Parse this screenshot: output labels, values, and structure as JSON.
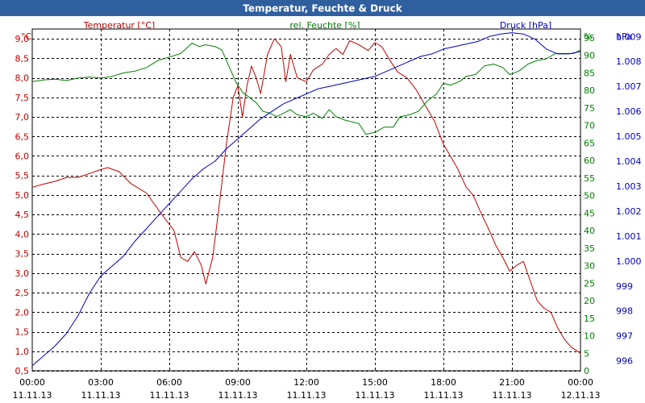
{
  "title": "Temperatur, Feuchte & Druck",
  "colors": {
    "title_bar": "#2f5f9e",
    "title_text": "#ffffff",
    "temp": "#c00000",
    "humid": "#008000",
    "press": "#0000c0",
    "grid": "#000000",
    "axis_text": "#000000"
  },
  "chart_data": {
    "type": "line",
    "title": "Temperatur, Feuchte & Druck",
    "x_ticks": [
      {
        "time": "00:00",
        "date": "11.11.13"
      },
      {
        "time": "03:00",
        "date": "11.11.13"
      },
      {
        "time": "06:00",
        "date": "11.11.13"
      },
      {
        "time": "09:00",
        "date": "11.11.13"
      },
      {
        "time": "12:00",
        "date": "11.11.13"
      },
      {
        "time": "15:00",
        "date": "11.11.13"
      },
      {
        "time": "18:00",
        "date": "11.11.13"
      },
      {
        "time": "21:00",
        "date": "11.11.13"
      },
      {
        "time": "00:00",
        "date": "12.11.13"
      }
    ],
    "xlim": [
      0,
      24
    ],
    "axes": {
      "temp": {
        "unit": "°C",
        "legend": "Temperatur [°C]",
        "ylim": [
          0.5,
          9.25
        ],
        "ticks": [
          "0,5",
          "1,0",
          "1,5",
          "2,0",
          "2,5",
          "3,0",
          "3,5",
          "4,0",
          "4,5",
          "5,0",
          "5,5",
          "6,0",
          "6,5",
          "7,0",
          "7,5",
          "8,0",
          "8,5",
          "9,0"
        ]
      },
      "humid": {
        "unit": "%",
        "legend": "rel. Feuchte [%]",
        "ylim": [
          0,
          97.5
        ],
        "ticks": [
          "0",
          "5",
          "10",
          "15",
          "20",
          "25",
          "30",
          "35",
          "40",
          "45",
          "50",
          "55",
          "60",
          "65",
          "70",
          "75",
          "80",
          "85",
          "90",
          "95"
        ]
      },
      "press": {
        "unit": "hPa",
        "legend": "Druck [hPa]",
        "ylim": [
          995.6,
          1009.3
        ],
        "ticks": [
          "996",
          "997",
          "998",
          "999",
          "1.000",
          "1.001",
          "1.002",
          "1.003",
          "1.004",
          "1.005",
          "1.006",
          "1.007",
          "1.008",
          "1.009"
        ]
      }
    },
    "series": [
      {
        "name": "Temperatur [°C]",
        "axis": "temp",
        "points": [
          [
            0,
            5.2
          ],
          [
            0.5,
            5.28
          ],
          [
            1,
            5.35
          ],
          [
            1.5,
            5.45
          ],
          [
            2,
            5.45
          ],
          [
            2.5,
            5.55
          ],
          [
            3,
            5.65
          ],
          [
            3.3,
            5.7
          ],
          [
            3.8,
            5.6
          ],
          [
            4.3,
            5.3
          ],
          [
            5,
            5.05
          ],
          [
            5.3,
            4.8
          ],
          [
            5.8,
            4.4
          ],
          [
            6.2,
            4.1
          ],
          [
            6.5,
            3.4
          ],
          [
            6.8,
            3.3
          ],
          [
            7.1,
            3.55
          ],
          [
            7.4,
            3.2
          ],
          [
            7.6,
            2.72
          ],
          [
            7.9,
            3.4
          ],
          [
            8.2,
            4.8
          ],
          [
            8.5,
            6.3
          ],
          [
            8.8,
            7.5
          ],
          [
            9,
            7.8
          ],
          [
            9.2,
            7.0
          ],
          [
            9.4,
            7.8
          ],
          [
            9.6,
            8.3
          ],
          [
            9.8,
            8.0
          ],
          [
            10,
            7.6
          ],
          [
            10.3,
            8.6
          ],
          [
            10.6,
            9.0
          ],
          [
            10.9,
            8.8
          ],
          [
            11.1,
            7.9
          ],
          [
            11.3,
            8.6
          ],
          [
            11.6,
            8.0
          ],
          [
            12,
            7.9
          ],
          [
            12.3,
            8.2
          ],
          [
            12.7,
            8.35
          ],
          [
            13,
            8.6
          ],
          [
            13.3,
            8.75
          ],
          [
            13.6,
            8.6
          ],
          [
            13.9,
            8.95
          ],
          [
            14.3,
            8.85
          ],
          [
            14.7,
            8.7
          ],
          [
            15,
            8.9
          ],
          [
            15.3,
            8.8
          ],
          [
            15.6,
            8.5
          ],
          [
            16,
            8.15
          ],
          [
            16.4,
            8.0
          ],
          [
            16.8,
            7.7
          ],
          [
            17.2,
            7.3
          ],
          [
            17.6,
            6.9
          ],
          [
            18,
            6.3
          ],
          [
            18.3,
            6.0
          ],
          [
            18.6,
            5.7
          ],
          [
            19,
            5.2
          ],
          [
            19.3,
            5.0
          ],
          [
            19.6,
            4.6
          ],
          [
            20,
            4.1
          ],
          [
            20.3,
            3.7
          ],
          [
            20.6,
            3.4
          ],
          [
            20.9,
            3.05
          ],
          [
            21.2,
            3.2
          ],
          [
            21.5,
            3.3
          ],
          [
            21.8,
            2.8
          ],
          [
            22.1,
            2.3
          ],
          [
            22.4,
            2.1
          ],
          [
            22.7,
            2.0
          ],
          [
            23,
            1.6
          ],
          [
            23.3,
            1.3
          ],
          [
            23.6,
            1.1
          ],
          [
            24,
            0.95
          ]
        ]
      },
      {
        "name": "rel. Feuchte [%]",
        "axis": "humid",
        "points": [
          [
            0,
            82.5
          ],
          [
            0.5,
            83.0
          ],
          [
            1,
            83.2
          ],
          [
            1.5,
            82.8
          ],
          [
            2,
            83.5
          ],
          [
            2.5,
            83.8
          ],
          [
            3,
            83.5
          ],
          [
            3.5,
            84.0
          ],
          [
            4,
            85.0
          ],
          [
            4.5,
            85.5
          ],
          [
            5,
            86.5
          ],
          [
            5.5,
            88.5
          ],
          [
            6,
            89.5
          ],
          [
            6.5,
            90.5
          ],
          [
            7,
            93.5
          ],
          [
            7.3,
            92.5
          ],
          [
            7.6,
            93.0
          ],
          [
            8,
            92.5
          ],
          [
            8.3,
            91.5
          ],
          [
            8.6,
            87.0
          ],
          [
            8.9,
            82.5
          ],
          [
            9.2,
            79.5
          ],
          [
            9.5,
            78.0
          ],
          [
            9.8,
            76.5
          ],
          [
            10.1,
            74.0
          ],
          [
            10.4,
            73.5
          ],
          [
            10.7,
            72.5
          ],
          [
            11.0,
            73.5
          ],
          [
            11.3,
            74.5
          ],
          [
            11.6,
            73.0
          ],
          [
            12,
            72.5
          ],
          [
            12.3,
            73.5
          ],
          [
            12.7,
            72.0
          ],
          [
            13,
            74.5
          ],
          [
            13.3,
            72.5
          ],
          [
            13.7,
            71.5
          ],
          [
            14,
            71.0
          ],
          [
            14.3,
            70.5
          ],
          [
            14.6,
            67.5
          ],
          [
            15,
            68.0
          ],
          [
            15.4,
            69.5
          ],
          [
            15.8,
            69.5
          ],
          [
            16.1,
            72.5
          ],
          [
            16.5,
            73.0
          ],
          [
            16.9,
            74.0
          ],
          [
            17.3,
            77.0
          ],
          [
            17.7,
            79.0
          ],
          [
            18,
            82.0
          ],
          [
            18.3,
            81.5
          ],
          [
            18.7,
            82.5
          ],
          [
            19,
            84.0
          ],
          [
            19.4,
            84.5
          ],
          [
            19.8,
            87.0
          ],
          [
            20.2,
            87.5
          ],
          [
            20.6,
            86.5
          ],
          [
            20.9,
            84.5
          ],
          [
            21.3,
            85.5
          ],
          [
            21.7,
            87.5
          ],
          [
            22.1,
            88.5
          ],
          [
            22.5,
            89.0
          ],
          [
            22.9,
            90.5
          ],
          [
            23.3,
            90.5
          ],
          [
            23.7,
            90.5
          ],
          [
            24,
            91.5
          ]
        ]
      },
      {
        "name": "Druck [hPa]",
        "axis": "press",
        "points": [
          [
            0,
            995.8
          ],
          [
            0.5,
            996.2
          ],
          [
            1,
            996.6
          ],
          [
            1.5,
            997.1
          ],
          [
            2,
            997.8
          ],
          [
            2.5,
            998.7
          ],
          [
            3,
            999.4
          ],
          [
            3.5,
            999.8
          ],
          [
            4,
            1000.2
          ],
          [
            4.5,
            1000.8
          ],
          [
            5,
            1001.3
          ],
          [
            5.5,
            1001.8
          ],
          [
            6,
            1002.3
          ],
          [
            6.5,
            1002.8
          ],
          [
            7,
            1003.3
          ],
          [
            7.5,
            1003.7
          ],
          [
            8,
            1004.0
          ],
          [
            8.5,
            1004.5
          ],
          [
            9,
            1004.9
          ],
          [
            9.5,
            1005.3
          ],
          [
            10,
            1005.7
          ],
          [
            10.5,
            1006.0
          ],
          [
            11,
            1006.3
          ],
          [
            11.5,
            1006.5
          ],
          [
            12,
            1006.7
          ],
          [
            12.5,
            1006.9
          ],
          [
            13,
            1007.0
          ],
          [
            13.5,
            1007.1
          ],
          [
            14,
            1007.2
          ],
          [
            14.5,
            1007.3
          ],
          [
            15,
            1007.4
          ],
          [
            15.5,
            1007.6
          ],
          [
            16,
            1007.8
          ],
          [
            16.5,
            1008.0
          ],
          [
            17,
            1008.2
          ],
          [
            17.5,
            1008.3
          ],
          [
            18,
            1008.5
          ],
          [
            18.5,
            1008.6
          ],
          [
            19,
            1008.7
          ],
          [
            19.5,
            1008.8
          ],
          [
            20,
            1009.0
          ],
          [
            20.5,
            1009.1
          ],
          [
            21,
            1009.15
          ],
          [
            21.5,
            1009.1
          ],
          [
            22,
            1008.9
          ],
          [
            22.5,
            1008.5
          ],
          [
            23,
            1008.3
          ],
          [
            23.5,
            1008.3
          ],
          [
            24,
            1008.4
          ]
        ]
      }
    ]
  }
}
